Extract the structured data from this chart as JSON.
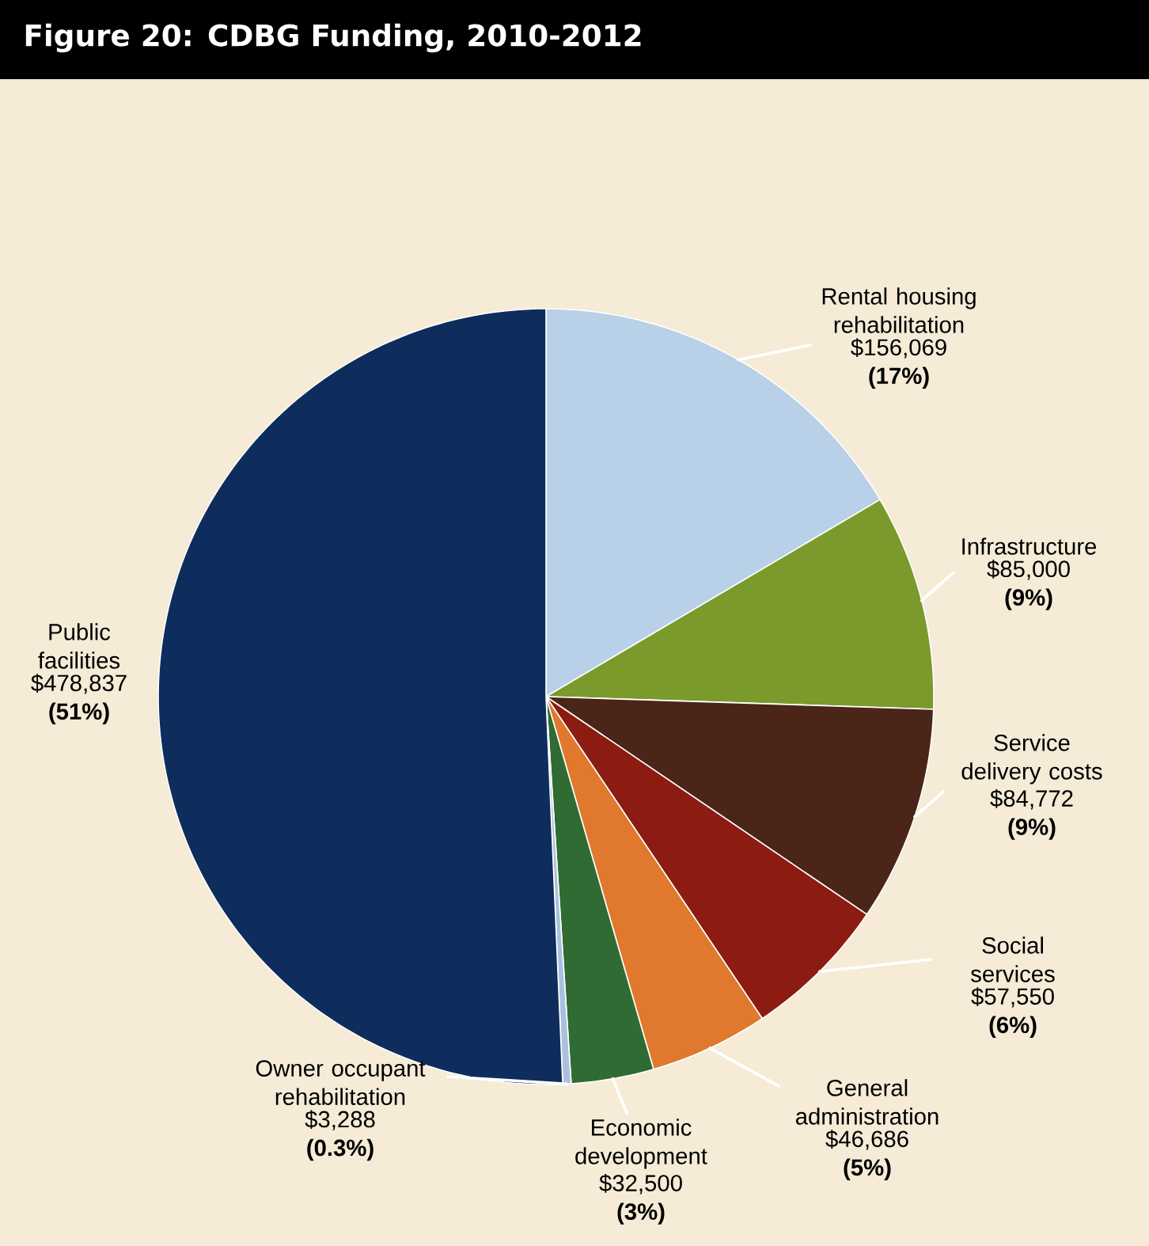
{
  "chart_data": {
    "type": "pie",
    "title": "Figure 20:  CDBG Funding, 2010-2012",
    "categories": [
      "Rental housing rehabilitation",
      "Infrastructure",
      "Service delivery costs",
      "Social services",
      "General administration",
      "Economic development",
      "Owner occupant rehabilitation",
      "Public facilities"
    ],
    "values": [
      156069,
      85000,
      84772,
      57550,
      46686,
      32500,
      3288,
      478837
    ],
    "colors": [
      "#b8d0e8",
      "#7b9a2c",
      "#4a2518",
      "#8c1c12",
      "#e0782e",
      "#2f6b32",
      "#a9c1de",
      "#0e2d5c"
    ],
    "value_labels": [
      "$156,069 **(17%)**",
      "$85,000 **(9%)**",
      "$84,772 **(9%)**",
      "$57,550 **(6%)**",
      "$46,686 **(5%)**",
      "$32,500 **(3%)**",
      "$3,288 **(0.3%)**",
      "$478,837 **(51%)**"
    ]
  }
}
